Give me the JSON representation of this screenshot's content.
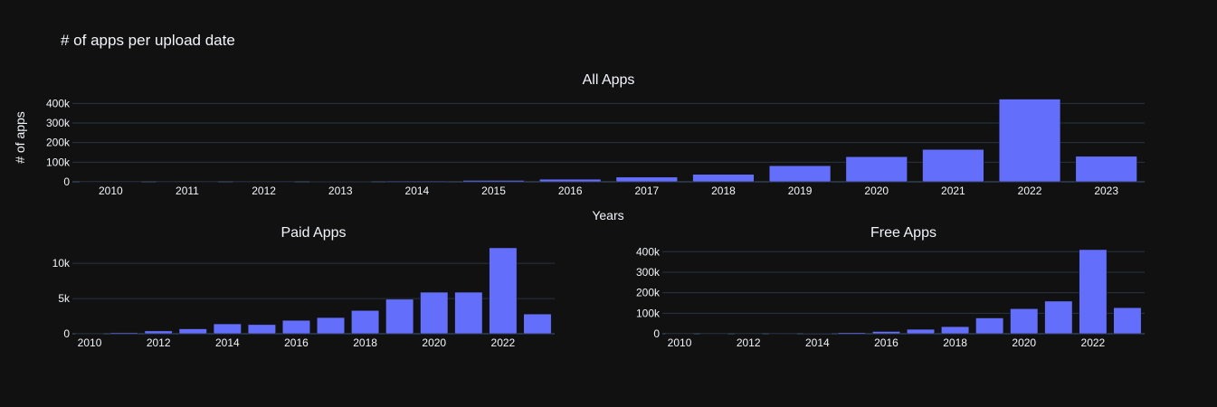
{
  "figure": {
    "title": "# of apps per upload date",
    "xlabel": "Years",
    "ylabel": "# of apps"
  },
  "colors": {
    "background": "#111111",
    "bar": "#636efa",
    "grid": "#283442",
    "text": "#f2f5fa",
    "tick_text": "#f2f5fa"
  },
  "chart_data": [
    {
      "type": "bar",
      "title": "All Apps",
      "categories": [
        "2010",
        "2011",
        "2012",
        "2013",
        "2014",
        "2015",
        "2016",
        "2017",
        "2018",
        "2019",
        "2020",
        "2021",
        "2022",
        "2023"
      ],
      "values": [
        50,
        300,
        600,
        1200,
        4000,
        7000,
        13000,
        24000,
        38000,
        82000,
        128000,
        165000,
        422000,
        130000
      ],
      "ylim": [
        0,
        420000
      ],
      "yticks": [
        0,
        100000,
        200000,
        300000,
        400000
      ],
      "ytick_labels": [
        "0",
        "100k",
        "200k",
        "300k",
        "400k"
      ],
      "xtick_labels": [
        "2010",
        "2011",
        "2012",
        "2013",
        "2014",
        "2015",
        "2016",
        "2017",
        "2018",
        "2019",
        "2020",
        "2021",
        "2022",
        "2023"
      ],
      "grid": true
    },
    {
      "type": "bar",
      "title": "Paid Apps",
      "categories": [
        "2010",
        "2011",
        "2012",
        "2013",
        "2014",
        "2015",
        "2016",
        "2017",
        "2018",
        "2019",
        "2020",
        "2021",
        "2022",
        "2023"
      ],
      "values": [
        20,
        150,
        400,
        700,
        1400,
        1300,
        1900,
        2300,
        3300,
        4900,
        5900,
        5900,
        12200,
        2800
      ],
      "ylim": [
        0,
        12200
      ],
      "yticks": [
        0,
        5000,
        10000
      ],
      "ytick_labels": [
        "0",
        "5k",
        "10k"
      ],
      "xtick_labels": [
        "2010",
        "2012",
        "2014",
        "2016",
        "2018",
        "2020",
        "2022"
      ],
      "grid": true
    },
    {
      "type": "bar",
      "title": "Free Apps",
      "categories": [
        "2010",
        "2011",
        "2012",
        "2013",
        "2014",
        "2015",
        "2016",
        "2017",
        "2018",
        "2019",
        "2020",
        "2021",
        "2022",
        "2023"
      ],
      "values": [
        30,
        150,
        200,
        500,
        2600,
        5700,
        11000,
        21700,
        34700,
        77000,
        122000,
        159000,
        410000,
        127000
      ],
      "ylim": [
        0,
        410000
      ],
      "yticks": [
        0,
        100000,
        200000,
        300000,
        400000
      ],
      "ytick_labels": [
        "0",
        "100k",
        "200k",
        "300k",
        "400k"
      ],
      "xtick_labels": [
        "2010",
        "2012",
        "2014",
        "2016",
        "2018",
        "2020",
        "2022"
      ],
      "grid": true
    }
  ]
}
